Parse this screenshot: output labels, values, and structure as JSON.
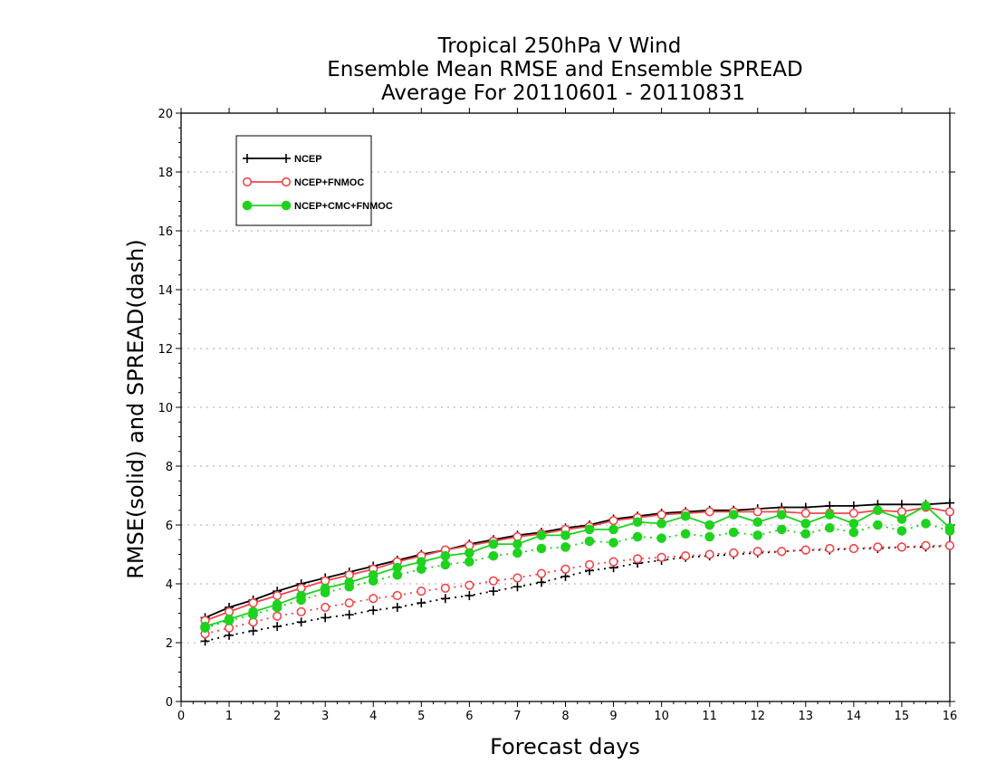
{
  "chart_data": {
    "type": "line",
    "title": [
      "Tropical 250hPa V Wind",
      "Ensemble Mean RMSE and Ensemble SPREAD",
      "Average For 20110601 - 20110831"
    ],
    "xlabel": "Forecast days",
    "ylabel": "RMSE(solid) and SPREAD(dash)",
    "xlim": [
      0,
      16
    ],
    "ylim": [
      0,
      20
    ],
    "xticks": [
      "0",
      "1",
      "2",
      "3",
      "4",
      "5",
      "6",
      "7",
      "8",
      "9",
      "10",
      "11",
      "12",
      "13",
      "14",
      "15",
      "16"
    ],
    "yticks": [
      "0",
      "2",
      "4",
      "6",
      "8",
      "10",
      "12",
      "14",
      "16",
      "18",
      "20"
    ],
    "grid": "horizontal dotted",
    "legend_position": "top-left",
    "x": [
      0.5,
      1,
      1.5,
      2,
      2.5,
      3,
      3.5,
      4,
      4.5,
      5,
      5.5,
      6,
      6.5,
      7,
      7.5,
      8,
      8.5,
      9,
      9.5,
      10,
      10.5,
      11,
      11.5,
      12,
      12.5,
      13,
      13.5,
      14,
      14.5,
      15,
      15.5,
      16
    ],
    "series": [
      {
        "name": "NCEP",
        "color": "#000000",
        "marker": "plus",
        "rmse": [
          2.85,
          3.2,
          3.45,
          3.75,
          4.0,
          4.2,
          4.4,
          4.6,
          4.8,
          5.0,
          5.15,
          5.35,
          5.5,
          5.65,
          5.75,
          5.9,
          6.0,
          6.2,
          6.3,
          6.4,
          6.45,
          6.5,
          6.5,
          6.55,
          6.6,
          6.6,
          6.65,
          6.65,
          6.7,
          6.7,
          6.7,
          6.75
        ],
        "spread": [
          2.05,
          2.25,
          2.4,
          2.55,
          2.7,
          2.85,
          2.95,
          3.1,
          3.2,
          3.35,
          3.5,
          3.6,
          3.75,
          3.9,
          4.05,
          4.25,
          4.45,
          4.55,
          4.7,
          4.8,
          4.9,
          4.95,
          5.0,
          5.05,
          5.1,
          5.15,
          5.15,
          5.2,
          5.2,
          5.25,
          5.25,
          5.3
        ]
      },
      {
        "name": "NCEP+FNMOC",
        "color": "#f0464b",
        "marker": "open-circle",
        "rmse": [
          2.75,
          3.05,
          3.35,
          3.6,
          3.85,
          4.1,
          4.3,
          4.5,
          4.75,
          4.95,
          5.15,
          5.3,
          5.45,
          5.6,
          5.7,
          5.85,
          5.95,
          6.15,
          6.25,
          6.35,
          6.4,
          6.45,
          6.45,
          6.45,
          6.45,
          6.4,
          6.4,
          6.4,
          6.5,
          6.45,
          6.6,
          6.45
        ],
        "spread": [
          2.3,
          2.5,
          2.7,
          2.9,
          3.05,
          3.2,
          3.35,
          3.5,
          3.6,
          3.75,
          3.85,
          3.95,
          4.1,
          4.2,
          4.35,
          4.5,
          4.65,
          4.75,
          4.85,
          4.9,
          4.95,
          5.0,
          5.05,
          5.1,
          5.1,
          5.15,
          5.2,
          5.2,
          5.25,
          5.25,
          5.3,
          5.3
        ]
      },
      {
        "name": "NCEP+CMC+FNMOC",
        "color": "#1ed21e",
        "marker": "filled-circle",
        "rmse": [
          2.55,
          2.8,
          3.05,
          3.3,
          3.6,
          3.85,
          4.05,
          4.3,
          4.55,
          4.75,
          4.95,
          5.05,
          5.35,
          5.35,
          5.65,
          5.65,
          5.85,
          5.85,
          6.1,
          6.05,
          6.3,
          6.0,
          6.35,
          6.1,
          6.35,
          6.05,
          6.35,
          6.05,
          6.5,
          6.2,
          6.65,
          5.9
        ],
        "spread": [
          2.5,
          2.75,
          2.95,
          3.2,
          3.45,
          3.7,
          3.9,
          4.1,
          4.3,
          4.5,
          4.65,
          4.75,
          4.95,
          5.05,
          5.2,
          5.25,
          5.45,
          5.4,
          5.6,
          5.55,
          5.7,
          5.6,
          5.75,
          5.65,
          5.85,
          5.7,
          5.9,
          5.75,
          6.0,
          5.8,
          6.05,
          5.8
        ]
      }
    ]
  }
}
